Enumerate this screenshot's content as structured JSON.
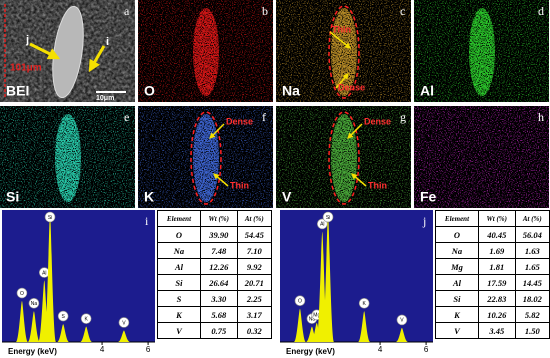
{
  "maps": [
    {
      "letter": "a",
      "element": "BEI",
      "color": "#9a9a9a",
      "notes": [
        "j",
        "i",
        "101μm",
        "10μm"
      ]
    },
    {
      "letter": "b",
      "element": "O",
      "color": "#d81818"
    },
    {
      "letter": "c",
      "element": "Na",
      "color": "#b88c28",
      "notes": [
        "Thin",
        "Dense"
      ]
    },
    {
      "letter": "d",
      "element": "Al",
      "color": "#2cc82c"
    },
    {
      "letter": "e",
      "element": "Si",
      "color": "#28c8a8"
    },
    {
      "letter": "f",
      "element": "K",
      "color": "#3c64d0",
      "notes": [
        "Dense",
        "Thin"
      ]
    },
    {
      "letter": "g",
      "element": "V",
      "color": "#48a838",
      "notes": [
        "Dense",
        "Thin"
      ]
    },
    {
      "letter": "h",
      "element": "Fe",
      "color": "#c828c8"
    }
  ],
  "spectra": [
    {
      "letter": "i",
      "x_label": "Energy (keV)",
      "xlim": [
        0,
        6.3
      ],
      "xticks": [
        4,
        6
      ],
      "peaks": [
        {
          "label": "O",
          "energy": 0.52,
          "height": 32
        },
        {
          "label": "Na",
          "energy": 1.04,
          "height": 24
        },
        {
          "label": "Al",
          "energy": 1.49,
          "height": 48
        },
        {
          "label": "Si",
          "energy": 1.74,
          "height": 100
        },
        {
          "label": "S",
          "energy": 2.31,
          "height": 14
        },
        {
          "label": "K",
          "energy": 3.31,
          "height": 12
        },
        {
          "label": "V",
          "energy": 4.95,
          "height": 9
        }
      ],
      "table": {
        "header": [
          "Element",
          "Wt (%)",
          "At (%)"
        ],
        "rows": [
          [
            "O",
            "39.90",
            "54.45"
          ],
          [
            "Na",
            "7.48",
            "7.10"
          ],
          [
            "Al",
            "12.26",
            "9.92"
          ],
          [
            "Si",
            "26.64",
            "20.71"
          ],
          [
            "S",
            "3.30",
            "2.25"
          ],
          [
            "K",
            "5.68",
            "3.17"
          ],
          [
            "V",
            "0.75",
            "0.32"
          ]
        ]
      }
    },
    {
      "letter": "j",
      "x_label": "Energy (keV)",
      "xlim": [
        0,
        6.3
      ],
      "xticks": [
        4,
        6
      ],
      "peaks": [
        {
          "label": "O",
          "energy": 0.52,
          "height": 26
        },
        {
          "label": "Na",
          "energy": 1.04,
          "height": 12
        },
        {
          "label": "Mg",
          "energy": 1.25,
          "height": 15
        },
        {
          "label": "Al",
          "energy": 1.49,
          "height": 86
        },
        {
          "label": "Si",
          "energy": 1.74,
          "height": 100
        },
        {
          "label": "K",
          "energy": 3.31,
          "height": 24
        },
        {
          "label": "V",
          "energy": 4.95,
          "height": 11
        }
      ],
      "table": {
        "header": [
          "Element",
          "Wt (%)",
          "At (%)"
        ],
        "rows": [
          [
            "O",
            "40.45",
            "56.04"
          ],
          [
            "Na",
            "1.69",
            "1.63"
          ],
          [
            "Mg",
            "1.81",
            "1.65"
          ],
          [
            "Al",
            "17.59",
            "14.45"
          ],
          [
            "Si",
            "22.83",
            "18.02"
          ],
          [
            "K",
            "10.26",
            "5.82"
          ],
          [
            "V",
            "3.45",
            "1.50"
          ]
        ]
      }
    }
  ]
}
